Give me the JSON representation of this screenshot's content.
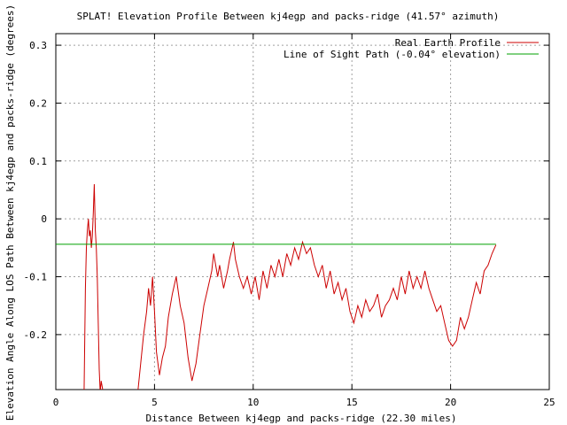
{
  "chart_data": {
    "type": "line",
    "title": "SPLAT! Elevation Profile Between kj4egp and packs-ridge (41.57° azimuth)",
    "xlabel": "Distance Between kj4egp and packs-ridge (22.30 miles)",
    "ylabel": "Elevation Angle Along LOS Path Between kj4egp and packs-ridge (degrees)",
    "xlim": [
      0,
      25
    ],
    "ylim": [
      -0.295,
      0.32
    ],
    "xticks": [
      0,
      5,
      10,
      15,
      20,
      25
    ],
    "yticks": [
      -0.2,
      -0.1,
      0,
      0.1,
      0.2,
      0.3
    ],
    "ytick_labels": [
      "-0.2",
      "-0.1",
      "0",
      "0.1",
      "0.2",
      "0.3"
    ],
    "grid": true,
    "legend_position": "top-right",
    "series": [
      {
        "name": "Real Earth Profile",
        "color": "#cc0000",
        "x": [
          1.43,
          1.5,
          1.55,
          1.6,
          1.65,
          1.7,
          1.75,
          1.8,
          1.85,
          1.9,
          1.95,
          2.0,
          2.05,
          2.1,
          2.15,
          2.2,
          2.25,
          2.3,
          2.4,
          2.5,
          4.15,
          4.3,
          4.45,
          4.6,
          4.7,
          4.8,
          4.9,
          5.0,
          5.1,
          5.25,
          5.4,
          5.55,
          5.7,
          5.9,
          6.1,
          6.3,
          6.5,
          6.7,
          6.9,
          7.1,
          7.3,
          7.5,
          7.7,
          7.9,
          8.0,
          8.2,
          8.3,
          8.5,
          8.7,
          8.8,
          9.0,
          9.1,
          9.3,
          9.5,
          9.7,
          9.9,
          10.1,
          10.3,
          10.5,
          10.7,
          10.9,
          11.1,
          11.3,
          11.5,
          11.7,
          11.9,
          12.1,
          12.3,
          12.5,
          12.7,
          12.9,
          13.1,
          13.3,
          13.5,
          13.7,
          13.9,
          14.1,
          14.3,
          14.5,
          14.7,
          14.9,
          15.1,
          15.3,
          15.5,
          15.7,
          15.9,
          16.1,
          16.3,
          16.5,
          16.7,
          16.9,
          17.1,
          17.3,
          17.5,
          17.7,
          17.9,
          18.1,
          18.3,
          18.5,
          18.7,
          18.9,
          19.1,
          19.3,
          19.5,
          19.7,
          19.9,
          20.1,
          20.3,
          20.5,
          20.7,
          20.9,
          21.1,
          21.3,
          21.5,
          21.7,
          21.9,
          22.1,
          22.3
        ],
        "y": [
          -0.3,
          -0.12,
          -0.05,
          -0.02,
          0.0,
          -0.03,
          -0.02,
          -0.05,
          -0.03,
          0.01,
          0.06,
          -0.02,
          -0.05,
          -0.1,
          -0.18,
          -0.26,
          -0.3,
          -0.28,
          -0.3,
          -0.3,
          -0.3,
          -0.25,
          -0.2,
          -0.16,
          -0.12,
          -0.15,
          -0.1,
          -0.16,
          -0.23,
          -0.27,
          -0.24,
          -0.22,
          -0.17,
          -0.13,
          -0.1,
          -0.15,
          -0.18,
          -0.24,
          -0.28,
          -0.25,
          -0.2,
          -0.15,
          -0.12,
          -0.09,
          -0.06,
          -0.1,
          -0.08,
          -0.12,
          -0.09,
          -0.07,
          -0.04,
          -0.07,
          -0.1,
          -0.12,
          -0.1,
          -0.13,
          -0.1,
          -0.14,
          -0.09,
          -0.12,
          -0.08,
          -0.1,
          -0.07,
          -0.1,
          -0.06,
          -0.08,
          -0.05,
          -0.07,
          -0.04,
          -0.06,
          -0.05,
          -0.08,
          -0.1,
          -0.08,
          -0.12,
          -0.09,
          -0.13,
          -0.11,
          -0.14,
          -0.12,
          -0.16,
          -0.18,
          -0.15,
          -0.17,
          -0.14,
          -0.16,
          -0.15,
          -0.13,
          -0.17,
          -0.15,
          -0.14,
          -0.12,
          -0.14,
          -0.1,
          -0.13,
          -0.09,
          -0.12,
          -0.1,
          -0.12,
          -0.09,
          -0.12,
          -0.14,
          -0.16,
          -0.15,
          -0.18,
          -0.21,
          -0.22,
          -0.21,
          -0.17,
          -0.19,
          -0.17,
          -0.14,
          -0.11,
          -0.13,
          -0.09,
          -0.08,
          -0.06,
          -0.045
        ]
      },
      {
        "name": "Line of Sight Path (-0.04° elevation)",
        "color": "#00a000",
        "x": [
          0,
          22.3
        ],
        "y": [
          -0.044,
          -0.044
        ]
      }
    ]
  }
}
